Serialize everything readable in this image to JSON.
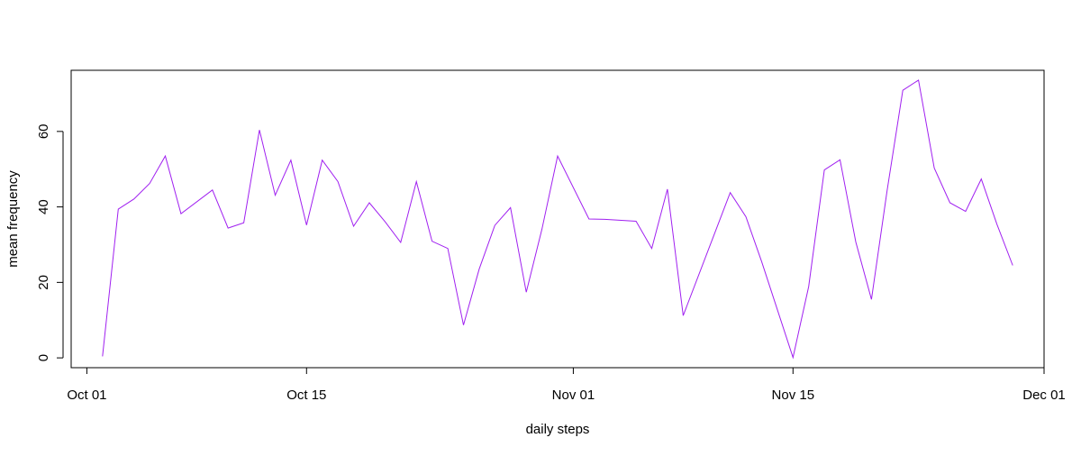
{
  "chart_data": {
    "type": "line",
    "title": "",
    "xlabel": "daily steps",
    "ylabel": "mean frequency",
    "line_color": "#a020f0",
    "grid": false,
    "x_tick_labels": [
      "Oct 01",
      "Oct 15",
      "Nov 01",
      "Nov 15",
      "Dec 01"
    ],
    "x_tick_dates": [
      "2012-10-01",
      "2012-10-15",
      "2012-11-01",
      "2012-11-15",
      "2012-12-01"
    ],
    "y_ticks": [
      0,
      20,
      40,
      60
    ],
    "xlim": [
      "2012-09-30",
      "2012-12-01"
    ],
    "ylim": [
      -2.6,
      76.2
    ],
    "series": [
      {
        "x": [
          "2012-10-02",
          "2012-10-03",
          "2012-10-04",
          "2012-10-05",
          "2012-10-06",
          "2012-10-07",
          "2012-10-09",
          "2012-10-10",
          "2012-10-11",
          "2012-10-12",
          "2012-10-13",
          "2012-10-14",
          "2012-10-15",
          "2012-10-16",
          "2012-10-17",
          "2012-10-18",
          "2012-10-19",
          "2012-10-20",
          "2012-10-21",
          "2012-10-22",
          "2012-10-23",
          "2012-10-24",
          "2012-10-25",
          "2012-10-26",
          "2012-10-27",
          "2012-10-28",
          "2012-10-29",
          "2012-10-30",
          "2012-10-31",
          "2012-11-02",
          "2012-11-03",
          "2012-11-05",
          "2012-11-06",
          "2012-11-07",
          "2012-11-08",
          "2012-11-11",
          "2012-11-12",
          "2012-11-13",
          "2012-11-15",
          "2012-11-16",
          "2012-11-17",
          "2012-11-18",
          "2012-11-19",
          "2012-11-20",
          "2012-11-21",
          "2012-11-22",
          "2012-11-23",
          "2012-11-24",
          "2012-11-25",
          "2012-11-26",
          "2012-11-27",
          "2012-11-28",
          "2012-11-29"
        ],
        "y": [
          0.4,
          39.4,
          42.1,
          46.2,
          53.5,
          38.2,
          44.5,
          34.4,
          35.8,
          60.4,
          43.1,
          52.4,
          35.2,
          52.4,
          46.7,
          34.9,
          41.1,
          36.1,
          30.6,
          46.7,
          30.9,
          29.0,
          8.7,
          23.5,
          35.1,
          39.8,
          17.4,
          34.1,
          53.5,
          36.8,
          36.7,
          36.2,
          29.0,
          44.7,
          11.2,
          43.8,
          37.4,
          25.5,
          0.1,
          18.9,
          49.8,
          52.5,
          30.7,
          15.5,
          44.4,
          70.9,
          73.6,
          50.3,
          41.1,
          38.8,
          47.4,
          35.4,
          24.5
        ]
      }
    ]
  }
}
